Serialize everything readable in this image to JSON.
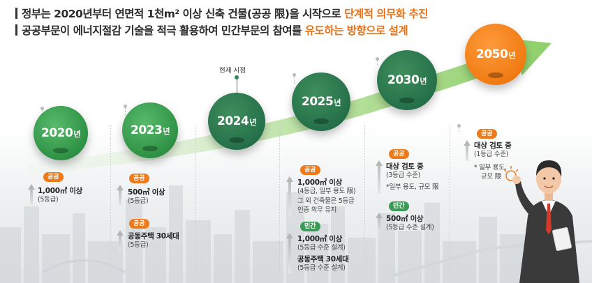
{
  "heading": {
    "line1_pre": "정부는 2020년부터 연면적 1천m² 이상 신축 건물(공공 限)을 시작으로 ",
    "line1_hl": "단계적 의무화 추진",
    "line2_pre": "공공부문이 에너지절감 기술을 적극 활용하여 민간부문의 참여를 ",
    "line2_hl": "유도하는 방향으로 설계"
  },
  "current_marker": "현재 시점",
  "year_suffix": "년",
  "milestones": [
    {
      "year": "2020"
    },
    {
      "year": "2023"
    },
    {
      "year": "2024"
    },
    {
      "year": "2025"
    },
    {
      "year": "2030"
    },
    {
      "year": "2050"
    }
  ],
  "details": {
    "y2020": {
      "badge": "공공",
      "l1": "1,000㎡ 이상",
      "l2": "(5등급)"
    },
    "y2023": {
      "a": {
        "badge": "공공",
        "l1": "500㎡ 이상",
        "l2": "(5등급)"
      },
      "b": {
        "badge": "공공",
        "l1": "공동주택 30세대",
        "l2": "(5등급)"
      }
    },
    "y2025": {
      "a": {
        "badge": "공공",
        "l1": "1,000㎡ 이상",
        "l2": "(4등급, 일부 용도 限)",
        "l3": "그 외 건축물은 5등급",
        "l4": "인증 의무 유지"
      },
      "b": {
        "badge": "민간",
        "l1": "1,000㎡ 이상",
        "l2": "(5등급 수준 설계)",
        "l3": "공동주택 30세대",
        "l4": "(5등급 수준 설계)"
      }
    },
    "y2030": {
      "a": {
        "badge": "공공",
        "l1": "대상 검토 중",
        "l2": "(3등급 수준)",
        "l3": "*일부 용도, 규모 限"
      },
      "b": {
        "badge": "민간",
        "l1": "500㎡ 이상",
        "l2": "(5등급 수준 설계)"
      }
    },
    "y2050": {
      "badge": "공공",
      "l1": "대상 검토 중",
      "l2": "(1등급 수준)",
      "l3": "* 일부 용도,",
      "l4": "규모 限"
    }
  },
  "colors": {
    "public": "#ef7a1a",
    "private": "#3b9a55",
    "green_light": "#2e9245",
    "green_dark": "#25704a",
    "orange": "#f07b12"
  }
}
